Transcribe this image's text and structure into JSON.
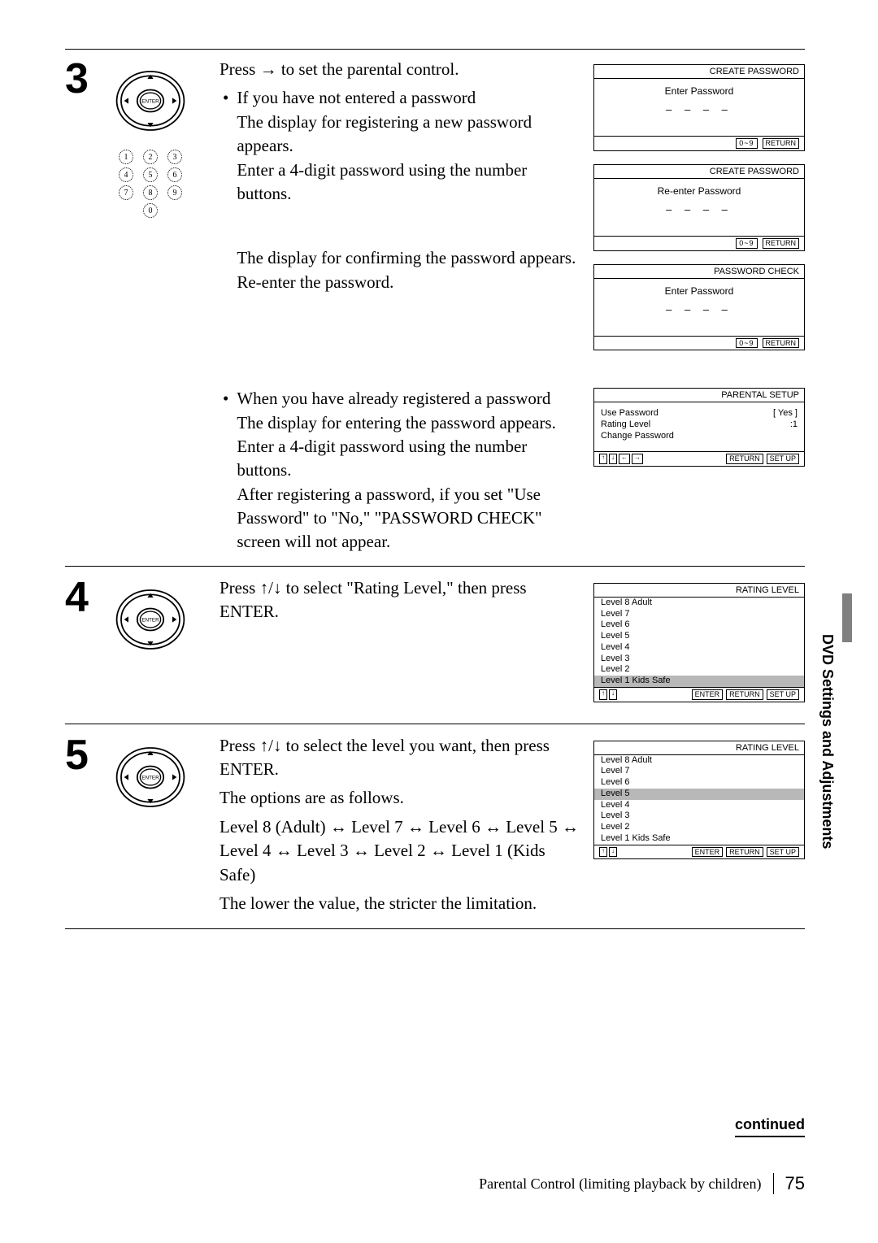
{
  "side_tab": "DVD Settings and Adjustments",
  "continued": "continued",
  "footer_text": "Parental Control (limiting playback by children)",
  "page_number": "75",
  "step3": {
    "num": "3",
    "intro": "Press → to set the parental control.",
    "bullet1": "If you have not entered a password",
    "bullet1_line1": "The display for registering a new password appears.",
    "bullet1_line2": "Enter a 4-digit password using the number buttons.",
    "bullet1_line3": "The display for confirming the password appears.",
    "bullet1_line4": "Re-enter the password.",
    "bullet2": "When you have already registered a password",
    "bullet2_line1": "The display for entering the password appears.",
    "bullet2_line2": "Enter a 4-digit password using the number buttons.",
    "bullet2_line3": "After registering a password, if you set \"Use Password\" to \"No,\" \"PASSWORD CHECK\" screen will not appear."
  },
  "step4": {
    "num": "4",
    "text": "Press ↑/↓ to select \"Rating Level,\" then press ENTER."
  },
  "step5": {
    "num": "5",
    "text1": "Press ↑/↓ to select the level you want, then press ENTER.",
    "text2": "The options are as follows.",
    "text3": "Level 8 (Adult) ↔ Level 7 ↔ Level 6 ↔ Level 5 ↔ Level 4 ↔ Level 3 ↔ Level 2 ↔ Level 1 (Kids Safe)",
    "text4": "The lower the value, the stricter the limitation."
  },
  "screens": {
    "create1": {
      "title": "CREATE PASSWORD",
      "prompt": "Enter Password",
      "dashes": "– – – –",
      "key": "0~9",
      "return": "RETURN"
    },
    "create2": {
      "title": "CREATE PASSWORD",
      "prompt": "Re-enter Password",
      "dashes": "– – – –",
      "key": "0~9",
      "return": "RETURN"
    },
    "check": {
      "title": "PASSWORD CHECK",
      "prompt": "Enter Password",
      "dashes": "– – – –",
      "key": "0~9",
      "return": "RETURN"
    },
    "parental": {
      "title": "PARENTAL SETUP",
      "row1_label": "Use Password",
      "row1_val": "[ Yes ]",
      "row2_label": "Rating Level",
      "row2_val": ":1",
      "row3_label": "Change Password",
      "return": "RETURN",
      "setup": "SET UP"
    },
    "rating1": {
      "title": "RATING LEVEL",
      "levels": [
        "Level 8 Adult",
        "Level 7",
        "Level 6",
        "Level 5",
        "Level 4",
        "Level 3",
        "Level 2",
        "Level 1 Kids Safe"
      ],
      "highlight": 7,
      "enter": "ENTER",
      "return": "RETURN",
      "setup": "SET UP"
    },
    "rating2": {
      "title": "RATING LEVEL",
      "levels": [
        "Level 8 Adult",
        "Level 7",
        "Level 6",
        "Level 5",
        "Level 4",
        "Level 3",
        "Level 2",
        "Level 1 Kids Safe"
      ],
      "highlight": 3,
      "enter": "ENTER",
      "return": "RETURN",
      "setup": "SET UP"
    }
  },
  "remote_label": "ENTER",
  "numpad": [
    [
      "1",
      "2",
      "3"
    ],
    [
      "4",
      "5",
      "6"
    ],
    [
      "7",
      "8",
      "9"
    ],
    [
      "",
      "0",
      ""
    ]
  ]
}
